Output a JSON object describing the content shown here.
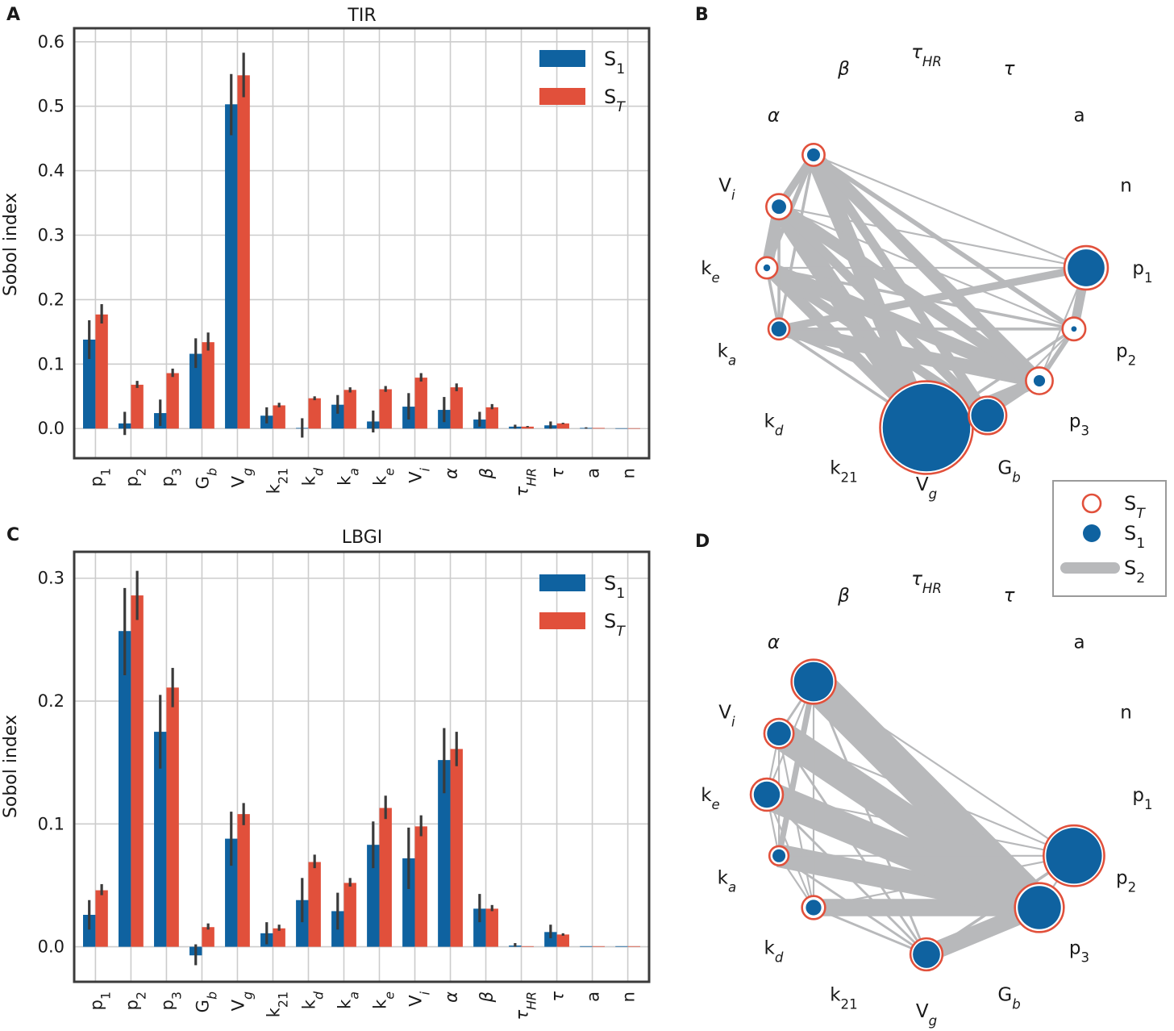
{
  "colors": {
    "s1": "#0f62a0",
    "st": "#e1503b",
    "edge": "#b8b9bb",
    "err": "#3a3a3a"
  },
  "panel_labels": {
    "a": "A",
    "b": "B",
    "c": "C",
    "d": "D"
  },
  "param_keys": [
    "p1",
    "p2",
    "p3",
    "Gb",
    "Vg",
    "k21",
    "kd",
    "ka",
    "ke",
    "Vi",
    "alpha",
    "beta",
    "tauHR",
    "tau",
    "a",
    "n"
  ],
  "params": {
    "p1": {
      "base": "p",
      "sub": "1",
      "sub_italic": false,
      "italic": false
    },
    "p2": {
      "base": "p",
      "sub": "2",
      "sub_italic": false,
      "italic": false
    },
    "p3": {
      "base": "p",
      "sub": "3",
      "sub_italic": false,
      "italic": false
    },
    "Gb": {
      "base": "G",
      "sub": "b",
      "sub_italic": true,
      "italic": false
    },
    "Vg": {
      "base": "V",
      "sub": "g",
      "sub_italic": true,
      "italic": false
    },
    "k21": {
      "base": "k",
      "sub": "21",
      "sub_italic": false,
      "italic": false
    },
    "kd": {
      "base": "k",
      "sub": "d",
      "sub_italic": true,
      "italic": false
    },
    "ka": {
      "base": "k",
      "sub": "a",
      "sub_italic": true,
      "italic": false
    },
    "ke": {
      "base": "k",
      "sub": "e",
      "sub_italic": true,
      "italic": false
    },
    "Vi": {
      "base": "V",
      "sub": "i",
      "sub_italic": true,
      "italic": false
    },
    "alpha": {
      "base": "α",
      "sub": "",
      "sub_italic": false,
      "italic": true
    },
    "beta": {
      "base": "β",
      "sub": "",
      "sub_italic": false,
      "italic": true
    },
    "tauHR": {
      "base": "τ",
      "sub": "HR",
      "sub_italic": true,
      "italic": true
    },
    "tau": {
      "base": "τ",
      "sub": "",
      "sub_italic": false,
      "italic": true
    },
    "a": {
      "base": "a",
      "sub": "",
      "sub_italic": false,
      "italic": false
    },
    "n": {
      "base": "n",
      "sub": "",
      "sub_italic": false,
      "italic": false
    }
  },
  "network_legend": {
    "st": "S_T",
    "s1": "S_1",
    "s2": "S_2"
  },
  "chart_data": [
    {
      "id": "A",
      "type": "bar",
      "title": "TIR",
      "xlabel": "",
      "ylabel": "Sobol index",
      "ylim": [
        -0.046,
        0.621
      ],
      "yticks": [
        0.0,
        0.1,
        0.2,
        0.3,
        0.4,
        0.5,
        0.6
      ],
      "categories": [
        "p1",
        "p2",
        "p3",
        "Gb",
        "Vg",
        "k21",
        "kd",
        "ka",
        "ke",
        "Vi",
        "alpha",
        "beta",
        "tauHR",
        "tau",
        "a",
        "n"
      ],
      "series": [
        {
          "name": "S_1",
          "key": "s1",
          "values": [
            0.138,
            0.008,
            0.024,
            0.116,
            0.503,
            0.02,
            0.001,
            0.037,
            0.011,
            0.034,
            0.029,
            0.014,
            0.003,
            0.005,
            0.001,
            0.0005
          ],
          "err_low": [
            0.108,
            -0.01,
            0.004,
            0.094,
            0.455,
            0.008,
            -0.014,
            0.023,
            -0.006,
            0.014,
            0.01,
            0.003,
            0.0,
            0.0,
            0.0,
            0.0
          ],
          "err_high": [
            0.168,
            0.026,
            0.045,
            0.14,
            0.55,
            0.033,
            0.016,
            0.052,
            0.028,
            0.055,
            0.049,
            0.026,
            0.006,
            0.011,
            0.002,
            0.001
          ]
        },
        {
          "name": "S_T",
          "key": "st",
          "values": [
            0.177,
            0.068,
            0.086,
            0.134,
            0.548,
            0.036,
            0.047,
            0.06,
            0.061,
            0.079,
            0.064,
            0.033,
            0.003,
            0.008,
            0.001,
            0.0005
          ],
          "err_low": [
            0.163,
            0.063,
            0.08,
            0.121,
            0.514,
            0.033,
            0.044,
            0.056,
            0.057,
            0.073,
            0.058,
            0.03,
            0.002,
            0.007,
            0.0,
            0.0
          ],
          "err_high": [
            0.193,
            0.074,
            0.093,
            0.149,
            0.583,
            0.04,
            0.05,
            0.064,
            0.066,
            0.086,
            0.07,
            0.038,
            0.004,
            0.009,
            0.001,
            0.001
          ]
        }
      ],
      "legend_position": "upper-right"
    },
    {
      "id": "C",
      "type": "bar",
      "title": "LBGI",
      "xlabel": "",
      "ylabel": "Sobol index",
      "ylim": [
        -0.0285,
        0.3215
      ],
      "yticks": [
        0.0,
        0.1,
        0.2,
        0.3
      ],
      "categories": [
        "p1",
        "p2",
        "p3",
        "Gb",
        "Vg",
        "k21",
        "kd",
        "ka",
        "ke",
        "Vi",
        "alpha",
        "beta",
        "tauHR",
        "tau",
        "a",
        "n"
      ],
      "series": [
        {
          "name": "S_1",
          "key": "s1",
          "values": [
            0.026,
            0.257,
            0.175,
            -0.007,
            0.088,
            0.011,
            0.038,
            0.029,
            0.083,
            0.072,
            0.152,
            0.031,
            0.001,
            0.012,
            0.0005,
            0.0005
          ],
          "err_low": [
            0.014,
            0.221,
            0.145,
            -0.015,
            0.066,
            0.002,
            0.02,
            0.014,
            0.064,
            0.047,
            0.125,
            0.02,
            0.0,
            0.007,
            0.0,
            0.0
          ],
          "err_high": [
            0.038,
            0.292,
            0.205,
            0.002,
            0.11,
            0.02,
            0.056,
            0.044,
            0.102,
            0.097,
            0.178,
            0.043,
            0.003,
            0.018,
            0.001,
            0.001
          ]
        },
        {
          "name": "S_T",
          "key": "st",
          "values": [
            0.046,
            0.286,
            0.211,
            0.016,
            0.108,
            0.015,
            0.069,
            0.052,
            0.113,
            0.098,
            0.161,
            0.031,
            0.0005,
            0.01,
            0.0005,
            0.0005
          ],
          "err_low": [
            0.042,
            0.266,
            0.195,
            0.014,
            0.099,
            0.013,
            0.064,
            0.049,
            0.104,
            0.09,
            0.147,
            0.029,
            0.0,
            0.009,
            0.0,
            0.0
          ],
          "err_high": [
            0.051,
            0.306,
            0.227,
            0.019,
            0.117,
            0.018,
            0.075,
            0.056,
            0.123,
            0.107,
            0.175,
            0.034,
            0.001,
            0.011,
            0.001,
            0.001
          ]
        }
      ],
      "legend_position": "upper-right"
    },
    {
      "id": "B",
      "type": "network",
      "title": "",
      "label_order": [
        "p1",
        "n",
        "a",
        "tau",
        "tauHR",
        "beta",
        "alpha",
        "Vi",
        "ke",
        "ka",
        "kd",
        "k21",
        "Vg",
        "Gb",
        "p3",
        "p2"
      ],
      "nodes": [
        {
          "key": "Vg",
          "s1": 0.503,
          "st": 0.548
        },
        {
          "key": "Gb",
          "s1": 0.116,
          "st": 0.134
        },
        {
          "key": "p3",
          "s1": 0.024,
          "st": 0.086
        },
        {
          "key": "p2",
          "s1": 0.008,
          "st": 0.068
        },
        {
          "key": "p1",
          "s1": 0.138,
          "st": 0.177
        },
        {
          "key": "ka",
          "s1": 0.037,
          "st": 0.06
        },
        {
          "key": "ke",
          "s1": 0.011,
          "st": 0.061
        },
        {
          "key": "Vi",
          "s1": 0.034,
          "st": 0.079
        },
        {
          "key": "alpha",
          "s1": 0.029,
          "st": 0.064
        }
      ],
      "edges": [
        [
          "Vg",
          "Gb",
          0.03
        ],
        [
          "Vg",
          "p3",
          0.02
        ],
        [
          "Vg",
          "p2",
          0.005
        ],
        [
          "Vg",
          "ka",
          0.005
        ],
        [
          "Vg",
          "ke",
          0.02
        ],
        [
          "Vg",
          "Vi",
          0.035
        ],
        [
          "Vg",
          "alpha",
          0.03
        ],
        [
          "Gb",
          "p3",
          0.008
        ],
        [
          "Gb",
          "p2",
          0.003
        ],
        [
          "Gb",
          "ka",
          0.008
        ],
        [
          "Gb",
          "ke",
          0.016
        ],
        [
          "Gb",
          "Vi",
          0.016
        ],
        [
          "Gb",
          "alpha",
          0.016
        ],
        [
          "p3",
          "p2",
          0.008
        ],
        [
          "p3",
          "ka",
          0.025
        ],
        [
          "p3",
          "ke",
          0.025
        ],
        [
          "p3",
          "Vi",
          0.022
        ],
        [
          "p3",
          "alpha",
          0.022
        ],
        [
          "p3",
          "p1",
          0.003
        ],
        [
          "p2",
          "p1",
          0.016
        ],
        [
          "p2",
          "ka",
          0.005
        ],
        [
          "p2",
          "ke",
          0.005
        ],
        [
          "p2",
          "Vi",
          0.003
        ],
        [
          "p2",
          "alpha",
          0.008
        ],
        [
          "p1",
          "ka",
          0.013
        ],
        [
          "p1",
          "ke",
          0.003
        ],
        [
          "p1",
          "Vi",
          0.003
        ],
        [
          "p1",
          "alpha",
          0.003
        ],
        [
          "ka",
          "ke",
          0.005
        ],
        [
          "ka",
          "Vi",
          0.005
        ],
        [
          "ka",
          "alpha",
          0.005
        ],
        [
          "ke",
          "Vi",
          0.02
        ],
        [
          "ke",
          "alpha",
          0.008
        ],
        [
          "Vi",
          "alpha",
          0.013
        ]
      ]
    },
    {
      "id": "D",
      "type": "network",
      "title": "",
      "label_order": [
        "p1",
        "n",
        "a",
        "tau",
        "tauHR",
        "beta",
        "alpha",
        "Vi",
        "ke",
        "ka",
        "kd",
        "k21",
        "Vg",
        "Gb",
        "p3",
        "p2"
      ],
      "nodes": [
        {
          "key": "Vg",
          "s1": 0.088,
          "st": 0.108
        },
        {
          "key": "p3",
          "s1": 0.175,
          "st": 0.211
        },
        {
          "key": "p2",
          "s1": 0.257,
          "st": 0.286
        },
        {
          "key": "kd",
          "s1": 0.038,
          "st": 0.069
        },
        {
          "key": "ka",
          "s1": 0.029,
          "st": 0.052
        },
        {
          "key": "ke",
          "s1": 0.083,
          "st": 0.113
        },
        {
          "key": "Vi",
          "s1": 0.072,
          "st": 0.098
        },
        {
          "key": "alpha",
          "s1": 0.152,
          "st": 0.161
        }
      ],
      "edges": [
        [
          "Vg",
          "p3",
          0.03
        ],
        [
          "Vg",
          "p2",
          0.005
        ],
        [
          "Vg",
          "kd",
          0.004
        ],
        [
          "Vg",
          "ka",
          0.004
        ],
        [
          "Vg",
          "ke",
          0.004
        ],
        [
          "Vg",
          "Vi",
          0.004
        ],
        [
          "Vg",
          "alpha",
          0.004
        ],
        [
          "p3",
          "kd",
          0.03
        ],
        [
          "p3",
          "ka",
          0.04
        ],
        [
          "p3",
          "ke",
          0.05
        ],
        [
          "p3",
          "Vi",
          0.05
        ],
        [
          "p3",
          "alpha",
          0.06
        ],
        [
          "p3",
          "p2",
          0.003
        ],
        [
          "p2",
          "kd",
          0.003
        ],
        [
          "p2",
          "ka",
          0.003
        ],
        [
          "p2",
          "ke",
          0.003
        ],
        [
          "p2",
          "Vi",
          0.003
        ],
        [
          "p2",
          "alpha",
          0.003
        ],
        [
          "kd",
          "ka",
          0.003
        ],
        [
          "kd",
          "ke",
          0.003
        ],
        [
          "kd",
          "Vi",
          0.003
        ],
        [
          "kd",
          "alpha",
          0.003
        ],
        [
          "ka",
          "ke",
          0.003
        ],
        [
          "ka",
          "Vi",
          0.003
        ],
        [
          "ka",
          "alpha",
          0.01
        ],
        [
          "ke",
          "Vi",
          0.003
        ],
        [
          "ke",
          "alpha",
          0.003
        ],
        [
          "Vi",
          "alpha",
          0.004
        ]
      ]
    }
  ]
}
